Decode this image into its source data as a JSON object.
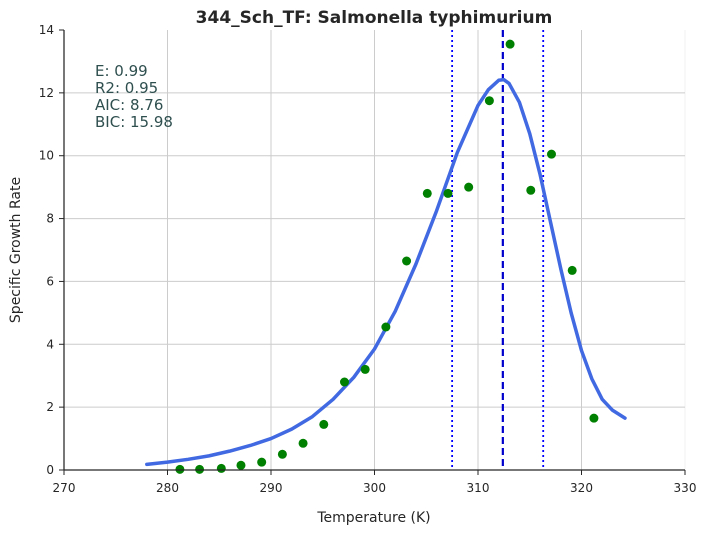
{
  "chart_data": {
    "type": "scatter",
    "title": "344_Sch_TF: Salmonella typhimurium",
    "xlabel": "Temperature (K)",
    "ylabel": "Specific Growth Rate",
    "xlim": [
      270,
      330
    ],
    "ylim": [
      0,
      14
    ],
    "x_ticks": [
      270,
      280,
      290,
      300,
      310,
      320,
      330
    ],
    "y_ticks": [
      0,
      2,
      4,
      6,
      8,
      10,
      12,
      14
    ],
    "grid": true,
    "annotations": [
      "E:  0.99",
      "R2:  0.95",
      "AIC: 8.76",
      "BIC: 15.98"
    ],
    "vertical_lines": [
      {
        "x": 307.5,
        "style": "dotted",
        "color": "#0000ff"
      },
      {
        "x": 312.4,
        "style": "dashed",
        "color": "#0000cc"
      },
      {
        "x": 316.3,
        "style": "dotted",
        "color": "#0000ff"
      }
    ],
    "series": [
      {
        "kind": "points",
        "color": "#008000",
        "x": [
          281.2,
          283.1,
          285.2,
          287.1,
          289.1,
          291.1,
          293.1,
          295.1,
          297.1,
          299.1,
          301.1,
          303.1,
          305.1,
          307.1,
          309.1,
          311.1,
          313.1,
          315.1,
          317.1,
          319.1,
          321.2
        ],
        "y": [
          0.02,
          0.02,
          0.05,
          0.15,
          0.25,
          0.5,
          0.85,
          1.45,
          2.8,
          3.2,
          4.55,
          6.65,
          8.8,
          8.8,
          9.0,
          11.75,
          13.55,
          8.9,
          10.05,
          6.35,
          1.65
        ]
      },
      {
        "kind": "fit",
        "color": "#4169e1",
        "x": [
          278,
          280,
          282,
          284,
          286,
          288,
          290,
          292,
          294,
          296,
          298,
          300,
          302,
          304,
          306,
          308,
          310,
          311,
          312,
          312.5,
          313,
          314,
          315,
          316,
          317,
          318,
          319,
          320,
          321,
          322,
          323,
          324.2
        ],
        "y": [
          0.18,
          0.25,
          0.34,
          0.45,
          0.6,
          0.78,
          1.0,
          1.3,
          1.7,
          2.25,
          2.95,
          3.85,
          5.05,
          6.55,
          8.25,
          10.1,
          11.6,
          12.1,
          12.4,
          12.42,
          12.3,
          11.7,
          10.7,
          9.4,
          7.9,
          6.4,
          5.0,
          3.8,
          2.9,
          2.25,
          1.9,
          1.65
        ]
      }
    ]
  }
}
